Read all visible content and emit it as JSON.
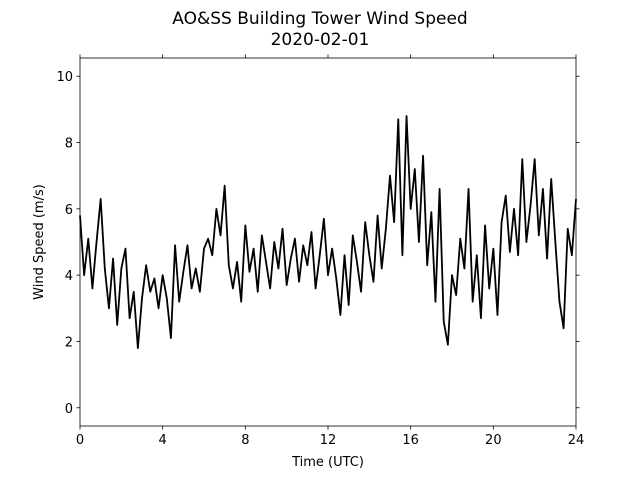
{
  "chart_data": {
    "type": "line",
    "title": "AO&SS Building Tower Wind Speed",
    "subtitle": "2020-02-01",
    "xlabel": "Time (UTC)",
    "ylabel": "Wind Speed (m/s)",
    "xlim": [
      0,
      24
    ],
    "xticks": [
      0,
      4,
      8,
      12,
      16,
      20,
      24
    ],
    "ylim": [
      -0.55,
      10.55
    ],
    "yticks": [
      0,
      2,
      4,
      6,
      8,
      10
    ],
    "x": [
      0,
      0.2,
      0.4,
      0.6,
      0.8,
      1,
      1.2,
      1.4,
      1.6,
      1.8,
      2,
      2.2,
      2.4,
      2.6,
      2.8,
      3,
      3.2,
      3.4,
      3.6,
      3.8,
      4,
      4.2,
      4.4,
      4.6,
      4.8,
      5,
      5.2,
      5.4,
      5.6,
      5.8,
      6,
      6.2,
      6.4,
      6.6,
      6.8,
      7,
      7.2,
      7.4,
      7.6,
      7.8,
      8,
      8.2,
      8.4,
      8.6,
      8.8,
      9,
      9.2,
      9.4,
      9.6,
      9.8,
      10,
      10.2,
      10.4,
      10.6,
      10.8,
      11,
      11.2,
      11.4,
      11.6,
      11.8,
      12,
      12.2,
      12.4,
      12.6,
      12.8,
      13,
      13.2,
      13.4,
      13.6,
      13.8,
      14,
      14.2,
      14.4,
      14.6,
      14.8,
      15,
      15.2,
      15.4,
      15.6,
      15.8,
      16,
      16.2,
      16.4,
      16.6,
      16.8,
      17,
      17.2,
      17.4,
      17.6,
      17.8,
      18,
      18.2,
      18.4,
      18.6,
      18.8,
      19,
      19.2,
      19.4,
      19.6,
      19.8,
      20,
      20.2,
      20.4,
      20.6,
      20.8,
      21,
      21.2,
      21.4,
      21.6,
      21.8,
      22,
      22.2,
      22.4,
      22.6,
      22.8,
      23,
      23.2,
      23.4,
      23.6,
      23.8,
      24
    ],
    "series": [
      {
        "name": "Wind Speed",
        "color": "#000000",
        "values": [
          5.8,
          4.0,
          5.1,
          3.6,
          5.0,
          6.3,
          4.2,
          3.0,
          4.5,
          2.5,
          4.2,
          4.8,
          2.7,
          3.5,
          1.8,
          3.3,
          4.3,
          3.5,
          3.9,
          3.0,
          4.0,
          3.3,
          2.1,
          4.9,
          3.2,
          4.1,
          4.9,
          3.6,
          4.2,
          3.5,
          4.8,
          5.1,
          4.6,
          6.0,
          5.2,
          6.7,
          4.3,
          3.6,
          4.4,
          3.2,
          5.5,
          4.1,
          4.8,
          3.5,
          5.2,
          4.4,
          3.6,
          5.0,
          4.2,
          5.4,
          3.7,
          4.5,
          5.1,
          3.8,
          4.9,
          4.3,
          5.3,
          3.6,
          4.6,
          5.7,
          4.0,
          4.8,
          3.9,
          2.8,
          4.6,
          3.1,
          5.2,
          4.4,
          3.5,
          5.6,
          4.6,
          3.8,
          5.8,
          4.2,
          5.4,
          7.0,
          5.6,
          8.7,
          4.6,
          8.8,
          6.0,
          7.2,
          5.0,
          7.6,
          4.3,
          5.9,
          3.2,
          6.6,
          2.6,
          1.9,
          4.0,
          3.4,
          5.1,
          4.2,
          6.6,
          3.2,
          4.6,
          2.7,
          5.5,
          3.6,
          4.8,
          2.8,
          5.6,
          6.4,
          4.7,
          6.0,
          4.6,
          7.5,
          5.0,
          6.1,
          7.5,
          5.2,
          6.6,
          4.5,
          6.9,
          5.0,
          3.2,
          2.4,
          5.4,
          4.6,
          6.3
        ]
      }
    ]
  }
}
